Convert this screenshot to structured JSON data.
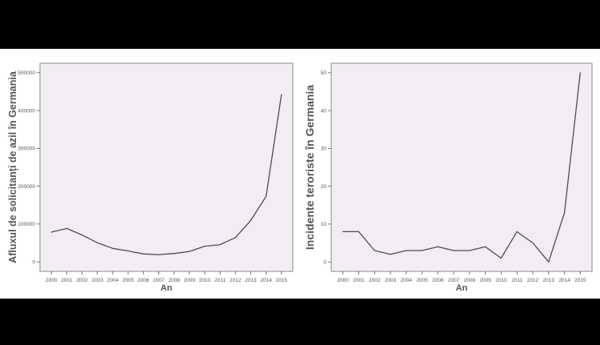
{
  "chart_data": [
    {
      "type": "line",
      "xlabel": "An",
      "ylabel": "Afluxul de solicitanți de azil în Germania",
      "x": [
        "2000",
        "2001",
        "2002",
        "2003",
        "2004",
        "2005",
        "2006",
        "2007",
        "2008",
        "2009",
        "2010",
        "2011",
        "2012",
        "2013",
        "2014",
        "2015"
      ],
      "values": [
        78564,
        88287,
        71127,
        50563,
        35607,
        28914,
        21029,
        19164,
        22085,
        27649,
        41332,
        45741,
        64539,
        109580,
        173072,
        441899
      ],
      "yticks": [
        0,
        100000,
        200000,
        300000,
        400000,
        500000
      ],
      "ytick_labels": [
        "0",
        "100000",
        "200000",
        "300000",
        "400000",
        "500000"
      ],
      "ylim": [
        -25000,
        525000
      ],
      "grid": false,
      "line_color": "#4d4d4d",
      "background": "#f1edf3"
    },
    {
      "type": "line",
      "xlabel": "An",
      "ylabel": "Incidente teroriste în Germania",
      "x": [
        "2000",
        "2001",
        "2002",
        "2003",
        "2004",
        "2005",
        "2006",
        "2007",
        "2008",
        "2009",
        "2010",
        "2011",
        "2012",
        "2013",
        "2014",
        "2015"
      ],
      "values": [
        8,
        8,
        3,
        2,
        3,
        3,
        4,
        3,
        3,
        4,
        1,
        8,
        5,
        0,
        13,
        50
      ],
      "yticks": [
        0,
        10,
        20,
        30,
        40,
        50
      ],
      "ytick_labels": [
        "0",
        "10",
        "20",
        "30",
        "40",
        "50"
      ],
      "ylim": [
        -2.5,
        52.5
      ],
      "grid": false,
      "line_color": "#4d4d4d",
      "background": "#f1edf3"
    }
  ]
}
